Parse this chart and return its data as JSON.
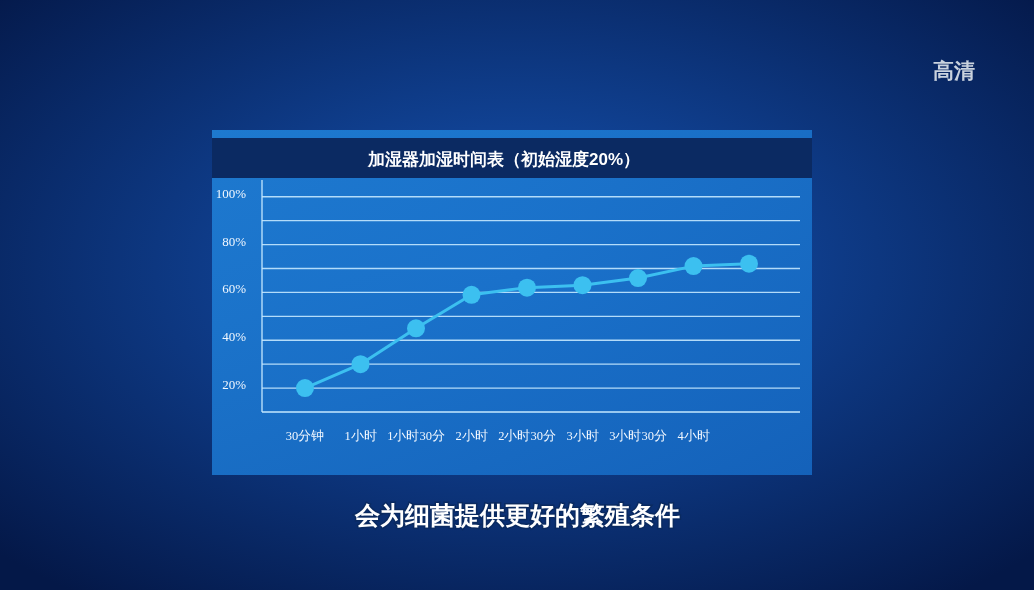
{
  "chart_data": {
    "type": "line",
    "title": "加湿器加湿时间表（初始湿度20%）",
    "categories": [
      "30分钟",
      "1小时",
      "1小时30分",
      "2小时",
      "2小时30分",
      "3小时",
      "3小时30分",
      "4小时",
      null
    ],
    "series": [
      {
        "color": "#3cc0f0",
        "values": [
          20,
          30,
          45,
          59,
          62,
          63,
          66,
          71,
          72
        ]
      }
    ],
    "ylim": [
      10,
      107
    ],
    "yticks": [
      {
        "value": 20,
        "label": "20%"
      },
      {
        "value": 30,
        "label": null
      },
      {
        "value": 40,
        "label": "40%"
      },
      {
        "value": 50,
        "label": null
      },
      {
        "value": 60,
        "label": "60%"
      },
      {
        "value": 70,
        "label": null
      },
      {
        "value": 80,
        "label": "80%"
      },
      {
        "value": 90,
        "label": null
      },
      {
        "value": 100,
        "label": "100%"
      }
    ],
    "grid": "y",
    "marker": "circle",
    "line_style": "solid",
    "annotations": [
      "会为细菌提供更好的繁殖条件",
      "高清"
    ]
  }
}
